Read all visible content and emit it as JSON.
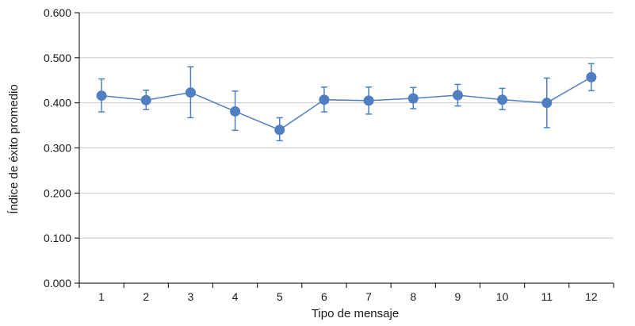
{
  "chart_data": {
    "type": "line",
    "title": "",
    "xlabel": "Tipo de mensaje",
    "ylabel": "Índice de éxito promedio",
    "categories": [
      "1",
      "2",
      "3",
      "4",
      "5",
      "6",
      "7",
      "8",
      "9",
      "10",
      "11",
      "12"
    ],
    "ylim": [
      0.0,
      0.6
    ],
    "yticks": [
      "0.000",
      "0.100",
      "0.200",
      "0.300",
      "0.400",
      "0.500",
      "0.600"
    ],
    "grid": true,
    "legend": "none",
    "series": [
      {
        "values": [
          0.416,
          0.406,
          0.423,
          0.381,
          0.34,
          0.407,
          0.405,
          0.41,
          0.417,
          0.407,
          0.4,
          0.457
        ],
        "error_low": [
          0.38,
          0.385,
          0.367,
          0.339,
          0.316,
          0.38,
          0.375,
          0.387,
          0.393,
          0.385,
          0.345,
          0.427
        ],
        "error_high": [
          0.453,
          0.428,
          0.48,
          0.426,
          0.367,
          0.435,
          0.435,
          0.434,
          0.441,
          0.432,
          0.455,
          0.487
        ],
        "color": "#4f7fc1"
      }
    ],
    "colors": {
      "axis": "#000000",
      "grid": "#c8c8c8",
      "line": "#4f7fc1",
      "marker": "#4f7fc1"
    }
  }
}
